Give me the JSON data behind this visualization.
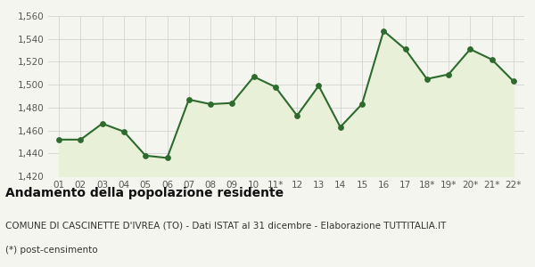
{
  "x_labels": [
    "01",
    "02",
    "03",
    "04",
    "05",
    "06",
    "07",
    "08",
    "09",
    "10",
    "11*",
    "12",
    "13",
    "14",
    "15",
    "16",
    "17",
    "18*",
    "19*",
    "20*",
    "21*",
    "22*"
  ],
  "values": [
    1452,
    1452,
    1466,
    1459,
    1438,
    1436,
    1487,
    1483,
    1484,
    1507,
    1498,
    1473,
    1499,
    1463,
    1483,
    1547,
    1531,
    1505,
    1509,
    1531,
    1522,
    1503
  ],
  "ylim": [
    1420,
    1560
  ],
  "yticks": [
    1420,
    1440,
    1460,
    1480,
    1500,
    1520,
    1540,
    1560
  ],
  "line_color": "#2d6a2d",
  "fill_color": "#e8f0d8",
  "marker_color": "#2d6a2d",
  "bg_color": "#f5f5f0",
  "grid_color": "#cccccc",
  "title": "Andamento della popolazione residente",
  "subtitle": "COMUNE DI CASCINETTE D'IVREA (TO) - Dati ISTAT al 31 dicembre - Elaborazione TUTTITALIA.IT",
  "footnote": "(*) post-censimento",
  "title_fontsize": 10,
  "subtitle_fontsize": 7.5,
  "footnote_fontsize": 7.5,
  "tick_fontsize": 7.5
}
